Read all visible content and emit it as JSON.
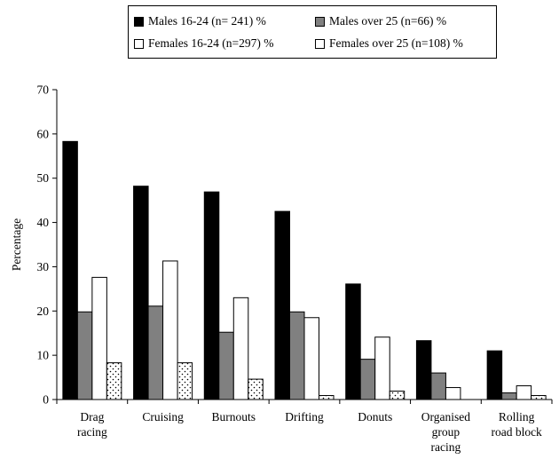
{
  "chart_data": {
    "type": "bar",
    "title": "",
    "xlabel": "",
    "ylabel": "Percentage",
    "ylim": [
      0,
      70
    ],
    "yticks": [
      0,
      10,
      20,
      30,
      40,
      50,
      60,
      70
    ],
    "grid": false,
    "legend_position": "top",
    "categories": [
      [
        "Drag",
        "racing"
      ],
      [
        "Cruising"
      ],
      [
        "Burnouts"
      ],
      [
        "Drifting"
      ],
      [
        "Donuts"
      ],
      [
        "Organised",
        "group",
        "racing"
      ],
      [
        "Rolling",
        "road block"
      ]
    ],
    "series": [
      {
        "name": "Males 16-24 (n= 241) %",
        "fill": "#000000",
        "pattern": "solid",
        "values": [
          58.3,
          48.2,
          46.9,
          42.5,
          26.1,
          13.3,
          11.0
        ]
      },
      {
        "name": "Males over 25 (n=66) %",
        "fill": "#808080",
        "pattern": "solid",
        "values": [
          19.8,
          21.1,
          15.2,
          19.8,
          9.1,
          6.0,
          1.5
        ]
      },
      {
        "name": "Females 16-24 (n=297) %",
        "fill": "#ffffff",
        "pattern": "solid",
        "values": [
          27.6,
          31.3,
          23.0,
          18.5,
          14.1,
          2.7,
          3.1
        ]
      },
      {
        "name": "Females over 25 (n=108) %",
        "fill": "#ffffff",
        "pattern": "dots",
        "values": [
          8.3,
          8.3,
          4.6,
          0.9,
          1.9,
          0.0,
          0.9
        ]
      }
    ]
  }
}
